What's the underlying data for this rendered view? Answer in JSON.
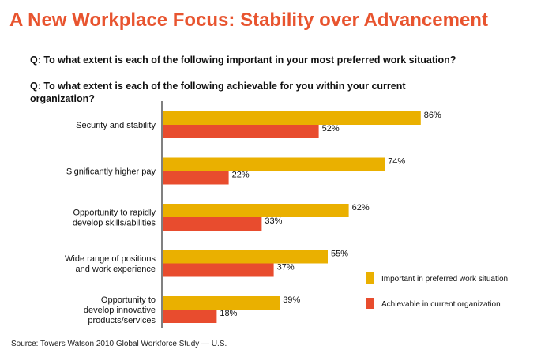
{
  "title": "A New Workplace Focus: Stability over Advancement",
  "question1": "Q: To what extent is each of the following important in your most preferred work situation?",
  "question2": "Q: To what extent is each of the following achievable for you within your current organization?",
  "source": "Source: Towers Watson 2010 Global Workforce Study — U.S.",
  "colors": {
    "title": "#e8542f",
    "important": "#eab000",
    "achievable": "#e84c2e"
  },
  "chart_data": {
    "type": "bar",
    "orientation": "horizontal",
    "categories": [
      [
        "Security and stability"
      ],
      [
        "Significantly higher pay"
      ],
      [
        "Opportunity to rapidly",
        "develop skills/abilities"
      ],
      [
        "Wide range of positions",
        "and work experience"
      ],
      [
        "Opportunity to",
        "develop innovative",
        "products/services"
      ]
    ],
    "series": [
      {
        "name": "Important in preferred work situation",
        "values": [
          86,
          74,
          62,
          55,
          39
        ],
        "labels": [
          "86%",
          "74%",
          "62%",
          "55%",
          "39%"
        ]
      },
      {
        "name": "Achievable in current organization",
        "values": [
          52,
          22,
          33,
          37,
          18
        ],
        "labels": [
          "52%",
          "22%",
          "33%",
          "37%",
          "18%"
        ]
      }
    ],
    "xlim": [
      0,
      100
    ],
    "grid": false,
    "legend_position": "right"
  }
}
